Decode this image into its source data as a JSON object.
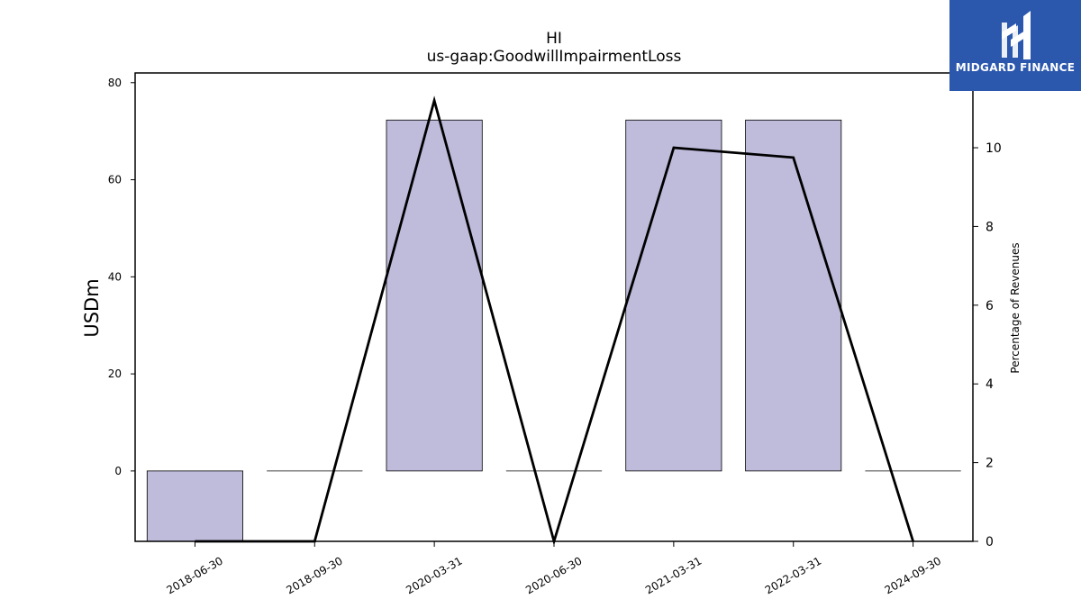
{
  "chart_data": {
    "type": "bar",
    "title": "HI",
    "subtitle": "us-gaap:GoodwillImpairmentLoss",
    "ylabel": "USDm",
    "ylabel_right": "Percentage of Revenues",
    "categories": [
      "2018-06-30",
      "2018-09-30",
      "2020-03-31",
      "2020-06-30",
      "2021-03-31",
      "2022-03-31",
      "2024-09-30"
    ],
    "series": [
      {
        "values": [
          -14.5,
          0,
          72.3,
          0,
          72.3,
          72.3,
          0
        ],
        "axis": "left",
        "kind": "bar",
        "color": "#bebbdb"
      },
      {
        "values": [
          0,
          0,
          11.2,
          0,
          10.0,
          9.75,
          0
        ],
        "axis": "right",
        "kind": "line",
        "color": "#000000"
      }
    ],
    "ylim": [
      -14.5,
      82
    ],
    "ylim_right": [
      0,
      11.9
    ],
    "yticks": [
      "0",
      "20",
      "40",
      "60",
      "80"
    ],
    "yticks_right": [
      "0",
      "2",
      "4",
      "6",
      "8",
      "10"
    ],
    "grid": false
  },
  "logo": {
    "text": "MIDGARD FINANCE",
    "background": "#2b57ad"
  }
}
